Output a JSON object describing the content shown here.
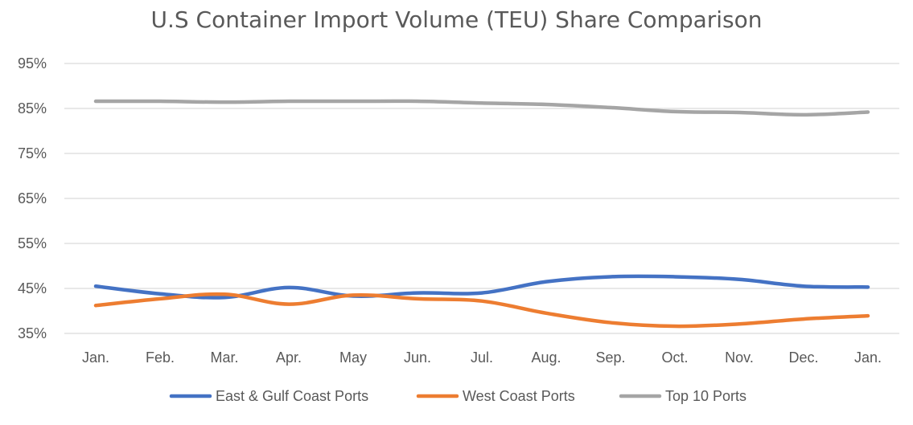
{
  "chart_data": {
    "type": "line",
    "title": "U.S Container Import Volume (TEU) Share Comparison",
    "xlabel": "",
    "ylabel": "",
    "categories": [
      "Jan.",
      "Feb.",
      "Mar.",
      "Apr.",
      "May",
      "Jun.",
      "Jul.",
      "Aug.",
      "Sep.",
      "Oct.",
      "Nov.",
      "Dec.",
      "Jan."
    ],
    "y_ticks": [
      "35%",
      "45%",
      "55%",
      "65%",
      "75%",
      "85%",
      "95%"
    ],
    "y_tick_values": [
      35,
      45,
      55,
      65,
      75,
      85,
      95
    ],
    "ylim": [
      35,
      95
    ],
    "grid": true,
    "legend_position": "bottom",
    "series": [
      {
        "name": "East & Gulf Coast Ports",
        "color": "#4472C4",
        "values": [
          45.5,
          43.8,
          43.0,
          45.2,
          43.3,
          44.0,
          44.0,
          46.5,
          47.6,
          47.6,
          47.0,
          45.5,
          45.3
        ]
      },
      {
        "name": "West Coast Ports",
        "color": "#ED7D31",
        "values": [
          41.2,
          42.7,
          43.7,
          41.5,
          43.5,
          42.7,
          42.2,
          39.5,
          37.4,
          36.6,
          37.1,
          38.2,
          38.9
        ]
      },
      {
        "name": "Top 10 Ports",
        "color": "#A5A5A5",
        "values": [
          86.6,
          86.6,
          86.4,
          86.6,
          86.6,
          86.6,
          86.2,
          85.9,
          85.2,
          84.3,
          84.1,
          83.6,
          84.2
        ]
      }
    ]
  }
}
